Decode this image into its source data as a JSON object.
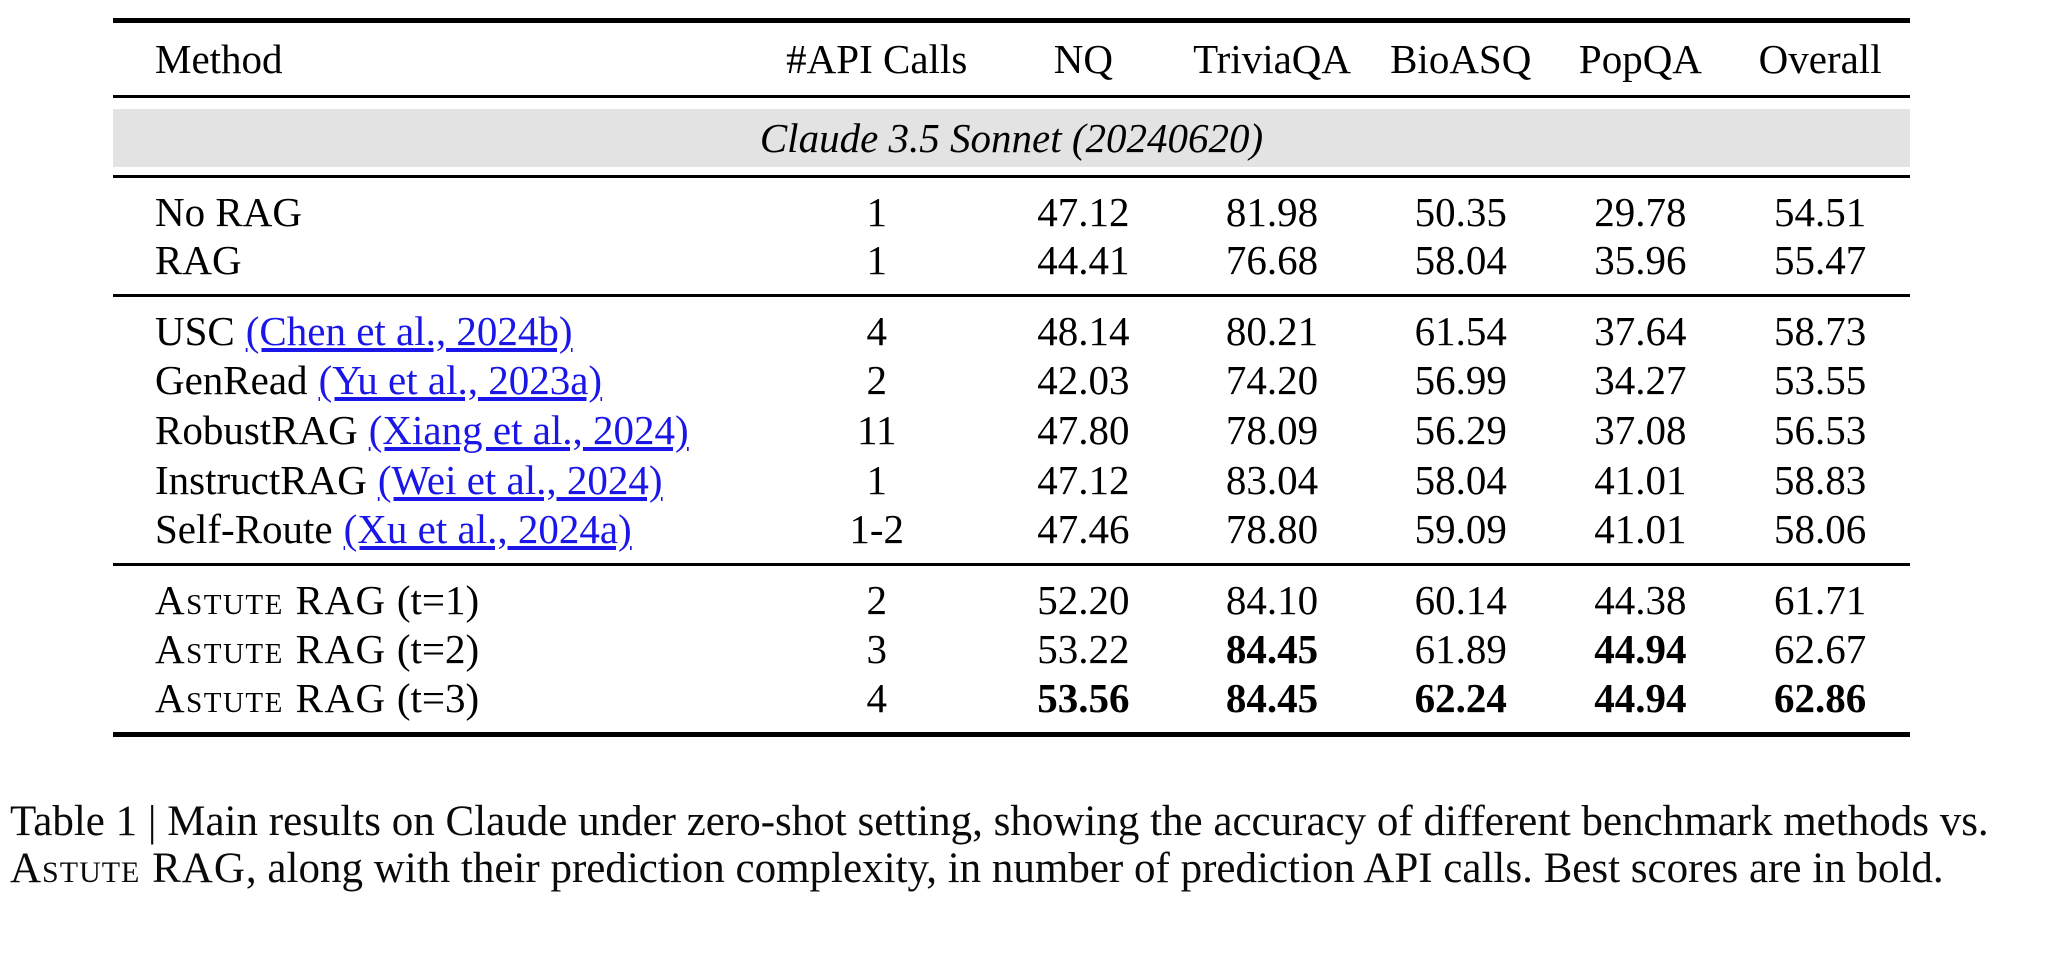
{
  "colors": {
    "banner_gray": "#e3e3e3",
    "link_blue": "#1a16e8",
    "rule_black": "#000000"
  },
  "table": {
    "columns": [
      "Method",
      "#API Calls",
      "NQ",
      "TriviaQA",
      "BioASQ",
      "PopQA",
      "Overall"
    ],
    "group_header": "Claude 3.5 Sonnet (20240620)",
    "sections": [
      {
        "rows": [
          {
            "method": "No RAG",
            "values": [
              "1",
              "47.12",
              "81.98",
              "50.35",
              "29.78",
              "54.51"
            ]
          },
          {
            "method": "RAG",
            "values": [
              "1",
              "44.41",
              "76.68",
              "58.04",
              "35.96",
              "55.47"
            ]
          }
        ]
      },
      {
        "rows": [
          {
            "method": "USC",
            "citation": "(Chen et al., 2024b)",
            "values": [
              "4",
              "48.14",
              "80.21",
              "61.54",
              "37.64",
              "58.73"
            ]
          },
          {
            "method": "GenRead",
            "citation": "(Yu et al., 2023a)",
            "values": [
              "2",
              "42.03",
              "74.20",
              "56.99",
              "34.27",
              "53.55"
            ]
          },
          {
            "method": "RobustRAG",
            "citation": "(Xiang et al., 2024)",
            "values": [
              "11",
              "47.80",
              "78.09",
              "56.29",
              "37.08",
              "56.53"
            ]
          },
          {
            "method": "InstructRAG",
            "citation": "(Wei et al., 2024)",
            "values": [
              "1",
              "47.12",
              "83.04",
              "58.04",
              "41.01",
              "58.83"
            ]
          },
          {
            "method": "Self-Route",
            "citation": "(Xu et al., 2024a)",
            "values": [
              "1-2",
              "47.46",
              "78.80",
              "59.09",
              "41.01",
              "58.06"
            ]
          }
        ]
      },
      {
        "rows": [
          {
            "method_sc": "Astute RAG",
            "method_suffix": " (t=1)",
            "values": [
              "2",
              "52.20",
              "84.10",
              "60.14",
              "44.38",
              "61.71"
            ]
          },
          {
            "method_sc": "Astute RAG",
            "method_suffix": " (t=2)",
            "values": [
              "3",
              "53.22",
              "84.45",
              "61.89",
              "44.94",
              "62.67"
            ]
          },
          {
            "method_sc": "Astute RAG",
            "method_suffix": " (t=3)",
            "values": [
              "4",
              "53.56",
              "84.45",
              "62.24",
              "44.94",
              "62.86"
            ]
          }
        ]
      }
    ]
  },
  "caption": {
    "part1": "Table 1 | Main results on Claude under zero-shot setting, showing the accuracy of different benchmark methods vs. ",
    "sc": "Astute RAG",
    "part2": ", along with their prediction complexity, in number of prediction API calls. Best scores are in bold."
  }
}
